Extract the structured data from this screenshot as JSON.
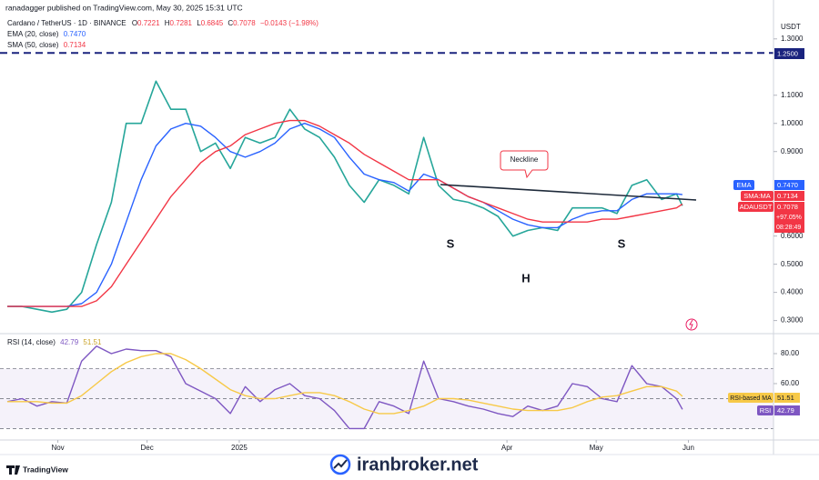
{
  "published": "ranadagger published on TradingView.com, May 30, 2025 15:31 UTC",
  "footer_logo": "TradingView",
  "watermark": "iranbroker.net",
  "chart_data": [
    {
      "type": "line",
      "title": "Cardano / TetherUS · 1D · BINANCE",
      "quote": [
        [
          "O",
          "0.7221"
        ],
        [
          "H",
          "0.7281"
        ],
        [
          "L",
          "0.6845"
        ],
        [
          "C",
          "0.7078"
        ]
      ],
      "change": "−0.0143 (−1.98%)",
      "unit": "USDT",
      "x": [
        0,
        5,
        10,
        15,
        20,
        25,
        30,
        35,
        40,
        45,
        50,
        55,
        60,
        65,
        70,
        75,
        80,
        85,
        90,
        95,
        100,
        105,
        110,
        115,
        120,
        125,
        130,
        135,
        140,
        145,
        150,
        155,
        160,
        165,
        170,
        175,
        180,
        185,
        190,
        195,
        200,
        205,
        210,
        215,
        220,
        225,
        227
      ],
      "xlim": [
        0,
        257
      ],
      "ylim": [
        0.26,
        1.38
      ],
      "yticks": [
        {
          "value": 0.3,
          "label": "0.3000"
        },
        {
          "value": 0.4,
          "label": "0.4000"
        },
        {
          "value": 0.5,
          "label": "0.5000"
        },
        {
          "value": 0.6,
          "label": "0.6000"
        },
        {
          "value": 0.9,
          "label": "0.9000"
        },
        {
          "value": 1.0,
          "label": "1.0000"
        },
        {
          "value": 1.1,
          "label": "1.1000"
        },
        {
          "value": 1.3,
          "label": "1.3000"
        }
      ],
      "levels": [
        {
          "value": 1.25,
          "label": "1.2500",
          "color": "#1a237e"
        }
      ],
      "neckline": "Neckline",
      "pattern_labels": [
        "S",
        "H",
        "S"
      ],
      "series": [
        {
          "name": "ADAUSDT",
          "color": "#26a69a",
          "last_label": "0.7078",
          "tag_color": "#f23645",
          "values": [
            0.35,
            0.35,
            0.34,
            0.33,
            0.34,
            0.4,
            0.57,
            0.72,
            1.0,
            1.0,
            1.15,
            1.05,
            1.05,
            0.9,
            0.93,
            0.84,
            0.95,
            0.93,
            0.95,
            1.05,
            0.98,
            0.95,
            0.88,
            0.78,
            0.72,
            0.8,
            0.78,
            0.75,
            0.95,
            0.78,
            0.73,
            0.72,
            0.7,
            0.67,
            0.6,
            0.62,
            0.63,
            0.62,
            0.7,
            0.7,
            0.7,
            0.68,
            0.78,
            0.8,
            0.73,
            0.75,
            0.7078
          ],
          "change_pct": "+97.05%",
          "countdown": "08:28:49"
        },
        {
          "name": "EMA (20, close)",
          "tag": "EMA",
          "color": "#2962ff",
          "last_label": "0.7470",
          "values": [
            0.35,
            0.35,
            0.35,
            0.35,
            0.35,
            0.36,
            0.4,
            0.5,
            0.65,
            0.8,
            0.92,
            0.98,
            1.0,
            0.99,
            0.95,
            0.9,
            0.88,
            0.9,
            0.93,
            0.98,
            1.0,
            0.98,
            0.95,
            0.88,
            0.82,
            0.8,
            0.79,
            0.76,
            0.82,
            0.8,
            0.77,
            0.74,
            0.72,
            0.69,
            0.66,
            0.64,
            0.63,
            0.63,
            0.66,
            0.68,
            0.69,
            0.69,
            0.73,
            0.75,
            0.75,
            0.75,
            0.747
          ]
        },
        {
          "name": "SMA (50, close)",
          "tag": "SMA:MA",
          "color": "#f23645",
          "last_label": "0.7134",
          "values": [
            0.35,
            0.35,
            0.35,
            0.35,
            0.35,
            0.35,
            0.37,
            0.42,
            0.5,
            0.58,
            0.66,
            0.74,
            0.8,
            0.86,
            0.9,
            0.92,
            0.96,
            0.98,
            1.0,
            1.01,
            1.01,
            0.99,
            0.96,
            0.93,
            0.89,
            0.86,
            0.83,
            0.8,
            0.8,
            0.8,
            0.77,
            0.74,
            0.72,
            0.7,
            0.68,
            0.66,
            0.65,
            0.65,
            0.65,
            0.65,
            0.66,
            0.66,
            0.67,
            0.68,
            0.69,
            0.7,
            0.7134
          ]
        }
      ]
    },
    {
      "type": "line",
      "title": "RSI (14, close)",
      "x": [
        0,
        5,
        10,
        15,
        20,
        25,
        30,
        35,
        40,
        45,
        50,
        55,
        60,
        65,
        70,
        75,
        80,
        85,
        90,
        95,
        100,
        105,
        110,
        115,
        120,
        125,
        130,
        135,
        140,
        145,
        150,
        155,
        160,
        165,
        170,
        175,
        180,
        185,
        190,
        195,
        200,
        205,
        210,
        215,
        220,
        225,
        227
      ],
      "xlim": [
        0,
        257
      ],
      "ylim": [
        23.6,
        91.5
      ],
      "yticks": [
        {
          "value": 80,
          "label": "80.00"
        },
        {
          "value": 60,
          "label": "60.00"
        }
      ],
      "band_lines": [
        70,
        50,
        30
      ],
      "xticks": [
        {
          "value": 17,
          "label": "Nov"
        },
        {
          "value": 47,
          "label": "Dec"
        },
        {
          "value": 78,
          "label": "2025"
        },
        {
          "value": 168,
          "label": "Apr"
        },
        {
          "value": 198,
          "label": "May"
        },
        {
          "value": 229,
          "label": "Jun"
        }
      ],
      "series": [
        {
          "name": "RSI",
          "color": "#7e57c2",
          "last_label": "42.79",
          "values": [
            48,
            50,
            45,
            48,
            47,
            75,
            85,
            80,
            83,
            82,
            82,
            78,
            60,
            55,
            50,
            40,
            58,
            48,
            56,
            60,
            52,
            50,
            42,
            30,
            30,
            48,
            45,
            40,
            75,
            50,
            48,
            45,
            43,
            40,
            38,
            45,
            42,
            45,
            60,
            58,
            50,
            48,
            72,
            60,
            58,
            50,
            42.79
          ]
        },
        {
          "name": "RSI-based MA",
          "color": "#f7c948",
          "last_label": "51.51",
          "values": [
            48,
            48,
            48,
            47,
            47,
            52,
            60,
            68,
            74,
            78,
            80,
            80,
            76,
            70,
            63,
            56,
            52,
            50,
            50,
            52,
            54,
            54,
            52,
            48,
            43,
            40,
            40,
            42,
            45,
            50,
            50,
            49,
            47,
            45,
            43,
            42,
            42,
            42,
            44,
            48,
            51,
            52,
            55,
            58,
            58,
            55,
            51.51
          ]
        }
      ]
    }
  ]
}
